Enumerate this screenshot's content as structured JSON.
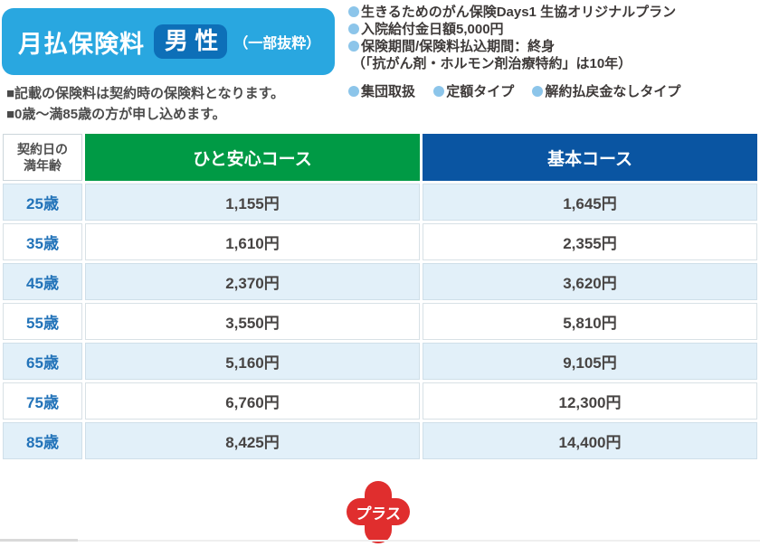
{
  "title_badge": {
    "label": "月払保険料",
    "gender": "男 性",
    "suffix": "（一部抜粋）"
  },
  "plan_bullets": {
    "items": [
      "生きるためのがん保険Days1 生協オリジナルプラン",
      "入院給付金日額5,000円",
      "保険期間/保険料払込期間：終身"
    ],
    "sub_note": "（「抗がん剤・ホルモン剤治療特約」は10年）",
    "tags": [
      "集団取扱",
      "定額タイプ",
      "解約払戻金なしタイプ"
    ]
  },
  "notes": [
    "■記載の保険料は契約時の保険料となります。",
    "■0歳〜満85歳の方が申し込めます。"
  ],
  "table": {
    "age_header": [
      "契約日の",
      "満年齢"
    ],
    "columns": [
      "ひと安心コース",
      "基本コース"
    ],
    "rows": [
      {
        "age": "25歳",
        "course1": "1,155円",
        "course2": "1,645円"
      },
      {
        "age": "35歳",
        "course1": "1,610円",
        "course2": "2,355円"
      },
      {
        "age": "45歳",
        "course1": "2,370円",
        "course2": "3,620円"
      },
      {
        "age": "55歳",
        "course1": "3,550円",
        "course2": "5,810円"
      },
      {
        "age": "65歳",
        "course1": "5,160円",
        "course2": "9,105円"
      },
      {
        "age": "75歳",
        "course1": "6,760円",
        "course2": "12,300円"
      },
      {
        "age": "85歳",
        "course1": "8,425円",
        "course2": "14,400円"
      }
    ]
  },
  "plus_badge": {
    "label": "プラス"
  },
  "colors": {
    "badge_light_blue": "#29a7e0",
    "badge_dark_blue": "#0d6fb8",
    "course1_green": "#009a45",
    "course2_blue": "#0a55a2",
    "row_light_blue": "#e2f0f9",
    "age_text_blue": "#2273b9",
    "bullet_dot_blue": "#8cc5ea",
    "plus_red": "#e02e2e"
  }
}
